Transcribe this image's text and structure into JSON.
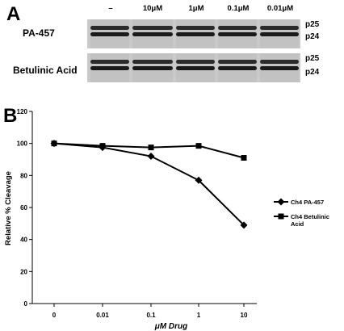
{
  "panel_a": {
    "letter": "A",
    "concentrations": [
      "–",
      "10μM",
      "1μM",
      "0.1μM",
      "0.01μM"
    ],
    "rows": [
      {
        "label": "PA-457",
        "bands": [
          "p25",
          "p24"
        ]
      },
      {
        "label": "Betulinic Acid",
        "bands": [
          "p25",
          "p24"
        ]
      }
    ]
  },
  "panel_b": {
    "letter": "B"
  },
  "chart_data": {
    "type": "line",
    "categories": [
      "0",
      "0.01",
      "0.1",
      "1",
      "10"
    ],
    "xlabel": "μM Drug",
    "ylabel": "Relative % Cleavage",
    "ylim": [
      0,
      120
    ],
    "yticks": [
      0,
      20,
      40,
      60,
      80,
      100,
      120
    ],
    "grid": false,
    "legend_position": "right",
    "series": [
      {
        "name": "Ch4 PA-457",
        "marker": "diamond",
        "values": [
          100,
          97.5,
          92,
          77,
          49
        ]
      },
      {
        "name": "Ch4 Betulinic Acid",
        "marker": "square",
        "values": [
          100,
          98.5,
          97.5,
          98.5,
          91
        ]
      }
    ]
  }
}
